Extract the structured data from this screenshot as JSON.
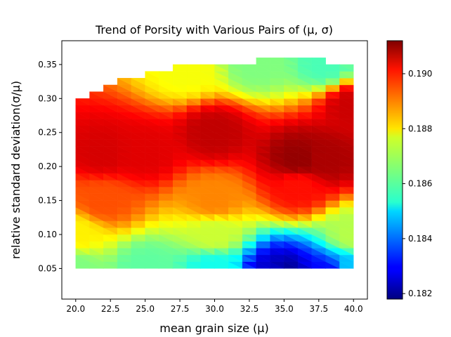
{
  "chart_data": {
    "type": "heatmap",
    "title": "Trend of Porsity with Various Pairs of (μ, σ)",
    "xlabel": "mean grain size (μ)",
    "ylabel": "relative standard deviation(σ/μ)",
    "xlim": [
      19.0,
      41.0
    ],
    "ylim": [
      0.005,
      0.385
    ],
    "x_ticks": [
      20.0,
      22.5,
      25.0,
      27.5,
      30.0,
      32.5,
      35.0,
      37.5,
      40.0
    ],
    "x_tick_labels": [
      "20.0",
      "22.5",
      "25.0",
      "27.5",
      "30.0",
      "32.5",
      "35.0",
      "37.5",
      "40.0"
    ],
    "y_ticks": [
      0.05,
      0.1,
      0.15,
      0.2,
      0.25,
      0.3,
      0.35
    ],
    "y_tick_labels": [
      "0.05",
      "0.10",
      "0.15",
      "0.20",
      "0.25",
      "0.30",
      "0.35"
    ],
    "colorbar": {
      "colormap": "jet",
      "range": [
        0.1818,
        0.1912
      ],
      "ticks": [
        0.182,
        0.184,
        0.186,
        0.188,
        0.19
      ],
      "tick_labels": [
        "0.182",
        "0.184",
        "0.186",
        "0.188",
        "0.190"
      ]
    },
    "mu": [
      20,
      21,
      22,
      23,
      24,
      25,
      26,
      27,
      28,
      29,
      30,
      31,
      32,
      33,
      34,
      35,
      36,
      37,
      38,
      39,
      40
    ],
    "sigma": [
      0.05,
      0.06,
      0.07,
      0.08,
      0.09,
      0.1,
      0.11,
      0.12,
      0.13,
      0.14,
      0.15,
      0.16,
      0.17,
      0.18,
      0.19,
      0.2,
      0.21,
      0.22,
      0.23,
      0.24,
      0.25,
      0.26,
      0.27,
      0.28,
      0.29,
      0.3,
      0.31,
      0.32,
      0.33,
      0.34,
      0.35,
      0.36,
      0.37
    ],
    "sigma_max_by_mu": [
      0.3,
      0.31,
      0.32,
      0.33,
      0.335,
      0.34,
      0.345,
      0.35,
      0.355,
      0.356,
      0.357,
      0.358,
      0.359,
      0.36,
      0.361,
      0.362,
      0.363,
      0.364,
      0.365,
      0.355,
      0.35
    ],
    "sigma_min_by_mu": [
      0.05,
      0.049,
      0.048,
      0.047,
      0.046,
      0.045,
      0.044,
      0.043,
      0.042,
      0.041,
      0.04,
      0.039,
      0.038,
      0.037,
      0.036,
      0.035,
      0.034,
      0.033,
      0.032,
      0.031,
      0.03
    ],
    "porosity_samples": [
      {
        "mu": 20,
        "sigma": 0.05,
        "value": 0.1865
      },
      {
        "mu": 25,
        "sigma": 0.05,
        "value": 0.1862
      },
      {
        "mu": 30,
        "sigma": 0.05,
        "value": 0.1855
      },
      {
        "mu": 34,
        "sigma": 0.04,
        "value": 0.1826
      },
      {
        "mu": 35,
        "sigma": 0.04,
        "value": 0.182
      },
      {
        "mu": 38,
        "sigma": 0.04,
        "value": 0.183
      },
      {
        "mu": 40,
        "sigma": 0.05,
        "value": 0.1848
      },
      {
        "mu": 20,
        "sigma": 0.1,
        "value": 0.1878
      },
      {
        "mu": 30,
        "sigma": 0.1,
        "value": 0.1872
      },
      {
        "mu": 40,
        "sigma": 0.1,
        "value": 0.187
      },
      {
        "mu": 22,
        "sigma": 0.15,
        "value": 0.1893
      },
      {
        "mu": 30,
        "sigma": 0.15,
        "value": 0.1888
      },
      {
        "mu": 36,
        "sigma": 0.17,
        "value": 0.1899
      },
      {
        "mu": 22,
        "sigma": 0.22,
        "value": 0.1904
      },
      {
        "mu": 25,
        "sigma": 0.22,
        "value": 0.1903
      },
      {
        "mu": 30,
        "sigma": 0.25,
        "value": 0.1906
      },
      {
        "mu": 36,
        "sigma": 0.21,
        "value": 0.191
      },
      {
        "mu": 38,
        "sigma": 0.21,
        "value": 0.1908
      },
      {
        "mu": 40,
        "sigma": 0.29,
        "value": 0.1905
      },
      {
        "mu": 28,
        "sigma": 0.34,
        "value": 0.1876
      },
      {
        "mu": 33,
        "sigma": 0.35,
        "value": 0.1865
      },
      {
        "mu": 38,
        "sigma": 0.35,
        "value": 0.186
      }
    ]
  }
}
